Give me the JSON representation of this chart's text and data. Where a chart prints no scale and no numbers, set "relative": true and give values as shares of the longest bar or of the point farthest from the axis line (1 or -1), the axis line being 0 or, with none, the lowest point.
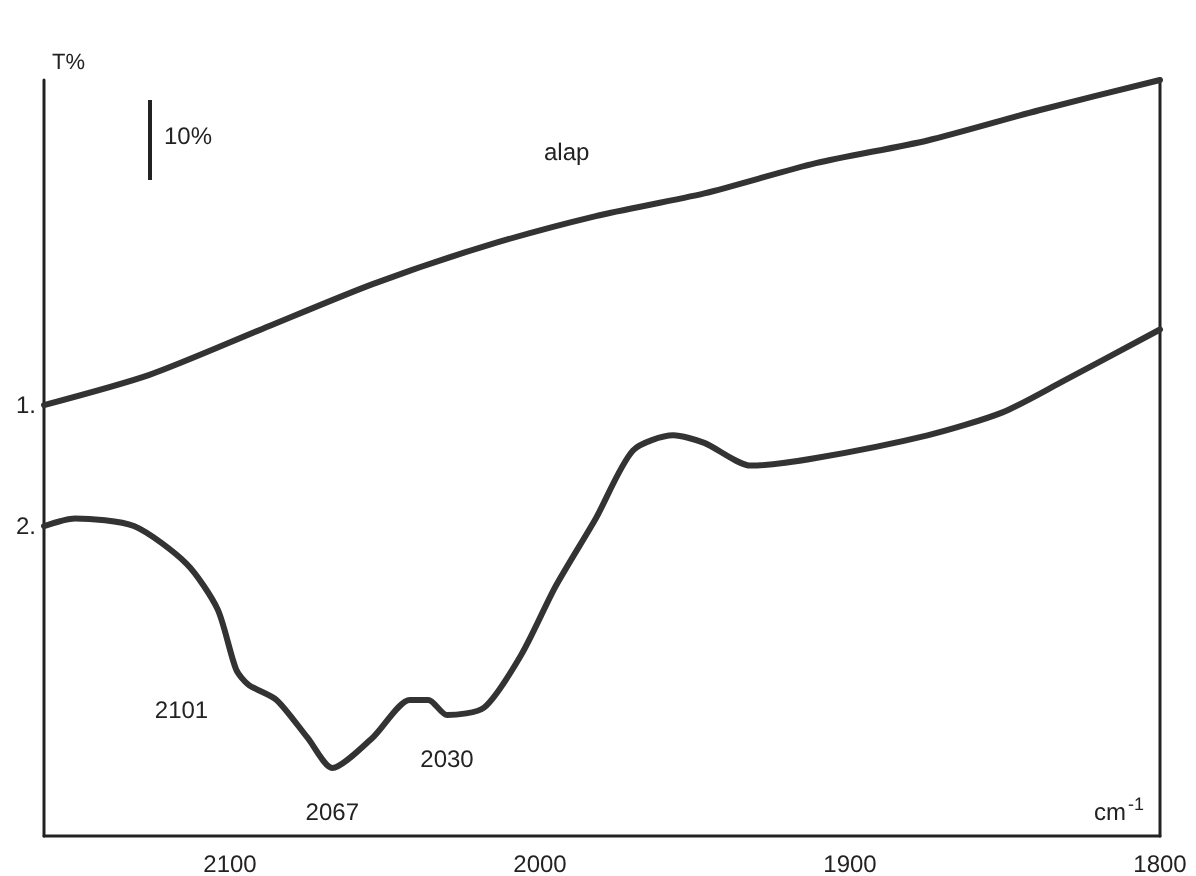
{
  "chart_data": {
    "type": "line",
    "relative": true,
    "ylabel": "T%",
    "xlabel": "cm$^{-1}$",
    "xlim": [
      2160,
      1800
    ],
    "xticks": [
      2100,
      2000,
      1900,
      1800
    ],
    "grid": false,
    "legend": false,
    "marker": "none",
    "line_style": "solid",
    "series": [
      {
        "name": "1.",
        "color": "#333333",
        "x": [
          2160,
          2126,
          2090,
          2054,
          2018,
          1982,
          1947,
          1911,
          1875,
          1839,
          1800
        ],
        "values": [
          0.57,
          0.61,
          0.67,
          0.73,
          0.78,
          0.82,
          0.85,
          0.89,
          0.92,
          0.96,
          1
        ]
      },
      {
        "name": "2.",
        "color": "#333333",
        "x": [
          2160,
          2150,
          2131,
          2114,
          2104,
          2098,
          2094,
          2085,
          2075,
          2067,
          2054,
          2042,
          2036,
          2030,
          2018,
          2006,
          1995,
          1982,
          1970,
          1957,
          1947,
          1932,
          1911,
          1875,
          1851,
          1832,
          1800
        ],
        "values": [
          0.41,
          0.42,
          0.41,
          0.36,
          0.3,
          0.22,
          0.2,
          0.18,
          0.13,
          0.09,
          0.13,
          0.18,
          0.18,
          0.16,
          0.17,
          0.24,
          0.33,
          0.42,
          0.51,
          0.53,
          0.52,
          0.49,
          0.5,
          0.53,
          0.56,
          0.6,
          0.67
        ]
      }
    ],
    "annotations": [
      "10%",
      "alap",
      {
        "text": "2101",
        "x": 2098,
        "y": 0.22
      },
      {
        "text": "2067",
        "x": 2067,
        "y": 0.09
      },
      {
        "text": "2030",
        "x": 2030,
        "y": 0.16
      }
    ]
  }
}
